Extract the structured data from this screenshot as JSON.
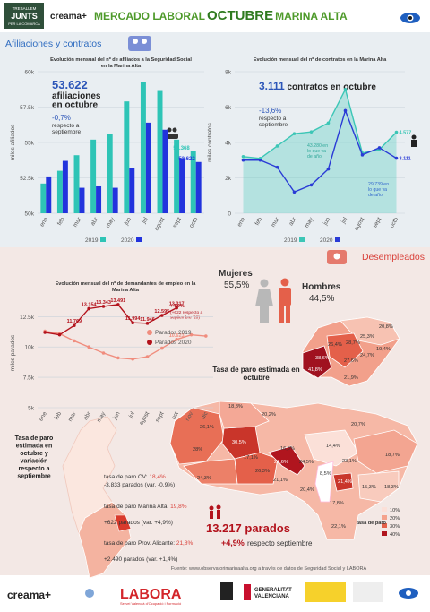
{
  "header": {
    "logo_lines": [
      "TREBALLEM",
      "JUNTS",
      "PER LA COMARCA"
    ],
    "brand": "creama+",
    "title": [
      "MERCADO LABORAL",
      "OCTUBRE",
      "MARINA ALTA"
    ]
  },
  "sections": [
    "Afiliaciones y contratos",
    "Desempleados"
  ],
  "chart_data": [
    {
      "type": "bar",
      "title": "Evolución mensual del nº de afiliados a la Seguridad Social en la Marina Alta",
      "ylabel": "miles afiliados",
      "categories": [
        "ene",
        "feb",
        "mar",
        "abr",
        "may",
        "jun",
        "jul",
        "agost",
        "sept",
        "octb"
      ],
      "series": [
        {
          "name": "2019",
          "color": "#2ec4b6",
          "values": [
            52100,
            53000,
            54100,
            55200,
            55600,
            57900,
            59300,
            58700,
            55200,
            54368
          ],
          "value_labels": [
            null,
            null,
            null,
            null,
            null,
            null,
            null,
            null,
            null,
            "54.368"
          ]
        },
        {
          "name": "2020",
          "color": "#2233dd",
          "values": [
            52600,
            53700,
            51800,
            51900,
            51800,
            53200,
            56400,
            55900,
            53900,
            53622
          ],
          "value_labels": [
            null,
            null,
            null,
            null,
            null,
            null,
            null,
            null,
            null,
            "53.622"
          ]
        }
      ],
      "ylim": [
        50000,
        60000
      ],
      "yticks": [
        {
          "value": 50000,
          "label": "50k"
        },
        {
          "value": 52500,
          "label": "52.5k"
        },
        {
          "value": 55000,
          "label": "55k"
        },
        {
          "value": 57500,
          "label": "57.5k"
        },
        {
          "value": 60000,
          "label": "60k"
        }
      ],
      "grid": true,
      "legend": "bottom"
    },
    {
      "type": "line",
      "title": "Evolución mensual del nº de contratos en la Marina Alta",
      "ylabel": "miles contratos",
      "categories": [
        "ene",
        "feb",
        "mar",
        "abr",
        "may",
        "jun",
        "jul",
        "agost",
        "sept",
        "octb"
      ],
      "series": [
        {
          "name": "2019",
          "color": "#3cc6b6",
          "area": true,
          "values": [
            3200,
            3100,
            3800,
            4500,
            4600,
            5100,
            7000,
            3400,
            3600,
            4577
          ],
          "value_labels": [
            null,
            null,
            null,
            null,
            null,
            null,
            null,
            null,
            null,
            "4.577"
          ]
        },
        {
          "name": "2020",
          "color": "#2a3bd6",
          "values": [
            3000,
            3000,
            2600,
            1200,
            1600,
            2500,
            5800,
            3300,
            3700,
            3111
          ],
          "value_labels": [
            null,
            null,
            null,
            null,
            null,
            null,
            null,
            null,
            null,
            "3.111"
          ]
        }
      ],
      "annotations": [
        "43.280 en lo que va de año",
        "29.739 en lo que va de año"
      ],
      "ylim": [
        0,
        8000
      ],
      "yticks": [
        0,
        {
          "value": 2000,
          "label": "2k"
        },
        {
          "value": 4000,
          "label": "4k"
        },
        {
          "value": 6000,
          "label": "6k"
        },
        {
          "value": 8000,
          "label": "8k"
        }
      ],
      "grid": true,
      "legend": "bottom"
    },
    {
      "type": "line",
      "title": "Evolución mensual del nº de demandantes de empleo en la Marina Alta",
      "ylabel": "miles parados",
      "categories": [
        "ene",
        "feb",
        "mar",
        "abr",
        "may",
        "jun",
        "jul",
        "agost",
        "sept",
        "oct",
        "nov",
        "dic"
      ],
      "series": [
        {
          "name": "Parados 2019",
          "color": "#f08d7e",
          "values": [
            11300,
            11100,
            10500,
            10000,
            9500,
            9100,
            9000,
            9200,
            9900,
            10623,
            11000,
            10900
          ],
          "value_labels": [
            null,
            null,
            null,
            null,
            null,
            null,
            null,
            null,
            null,
            "10.623",
            null,
            null
          ]
        },
        {
          "name": "Parados 2020",
          "color": "#b3121c",
          "values": [
            11200,
            11000,
            11769,
            13154,
            13343,
            13491,
            11994,
            11946,
            12595,
            13217,
            null,
            null
          ],
          "value_labels": [
            null,
            null,
            "11.769",
            "13.154",
            "13.343",
            "13.491",
            "11.994",
            "11.946",
            "12.595",
            "13.217",
            null,
            null
          ]
        }
      ],
      "annotations": [
        "+4,9%",
        "(+622 respecto a septiembre '20)"
      ],
      "ylim": [
        5000,
        14000
      ],
      "yticks": [
        {
          "value": 5000,
          "label": "5k"
        },
        {
          "value": 7500,
          "label": "7.5k"
        },
        {
          "value": 10000,
          "label": "10k"
        },
        {
          "value": 12500,
          "label": "12.5k"
        }
      ],
      "grid": true,
      "legend": "right"
    }
  ],
  "callouts": [
    {
      "value": "53.622",
      "text": "afiliaciones en octubre",
      "change": "-0,7%",
      "note": "respecto a septiembre"
    },
    {
      "value": "3.111",
      "text": "contratos en octubre",
      "change": "-13,6%",
      "note": "respecto a septiembre"
    }
  ],
  "gender": {
    "women_label": "Mujeres",
    "women": "55,5%",
    "men_label": "Hombres",
    "men": "44,5%"
  },
  "map": {
    "title": "Tasa de paro estimada en octubre",
    "inset_rates": [
      "20,8%",
      "25,3%",
      "26,4%",
      "28,7%",
      "19,4%",
      "38,6%",
      "27,6%",
      "24,7%",
      "41,8%",
      "21,9%"
    ],
    "rates": [
      "18,8%",
      "20,2%",
      "26,1%",
      "30,5%",
      "28%",
      "16,3%",
      "17,1%",
      "26,3%",
      "26,6%",
      "24,5%",
      "24,3%",
      "21,1%",
      "20,7%",
      "14,4%",
      "23,1%",
      "18,7%",
      "8,5%",
      "21,4%",
      "20,4%",
      "15,3%",
      "18,3%",
      "17,8%",
      "22,1%"
    ],
    "legend": [
      "10%",
      "20%",
      "30%",
      "40%"
    ],
    "legend_title": "tasa de paro"
  },
  "regional": {
    "title": "Tasa de paro estimada en octubre y variación respecto a septiembre",
    "items": [
      {
        "label": "tasa de paro CV:",
        "rate": "18,4%",
        "change": "-3.833 parados (var. -0,9%)"
      },
      {
        "label": "tasa de paro Marina Alta:",
        "rate": "19,8%",
        "change": "+622 parados (var. +4,9%)"
      },
      {
        "label": "tasa de paro Prov. Alicante:",
        "rate": "21,8%",
        "change": "+2.490 parados (var. +1,4%)"
      }
    ]
  },
  "summary": {
    "value": "13.217 parados",
    "change": "+4,9%",
    "note": "respecto septiembre"
  },
  "source": "Fuente: www.observatorimarinaalta.org a través de datos de Seguridad Social y LABORA",
  "footer": {
    "brand": "creama+",
    "labora": "LABORA",
    "labora_sub": "Servei Valencià d'Ocupació i Formació",
    "gva": "GENERALITAT VALENCIANA"
  }
}
